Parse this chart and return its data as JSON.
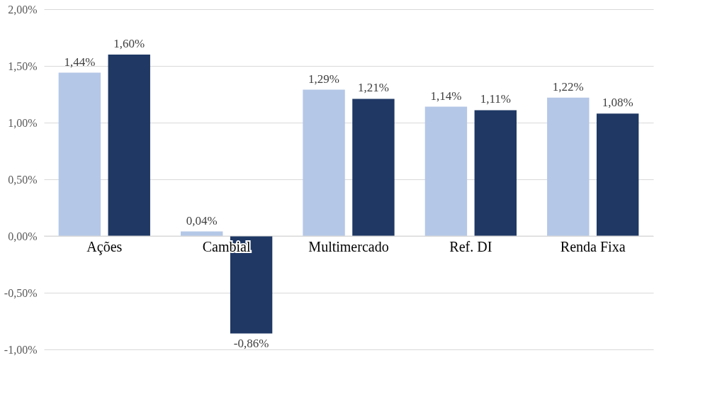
{
  "chart_data": {
    "type": "bar",
    "categories": [
      "Ações",
      "Cambial",
      "Multimercado",
      "Ref. DI",
      "Renda Fixa"
    ],
    "series": [
      {
        "color": "#b4c7e7",
        "values": [
          1.44,
          0.04,
          1.29,
          1.14,
          1.22
        ],
        "value_labels": [
          "1,44%",
          "0,04%",
          "1,29%",
          "1,14%",
          "1,22%"
        ]
      },
      {
        "color": "#1f3864",
        "values": [
          1.6,
          -0.86,
          1.21,
          1.11,
          1.08
        ],
        "value_labels": [
          "1,60%",
          "-0,86%",
          "1,21%",
          "1,11%",
          "1,08%"
        ]
      }
    ],
    "ylim": [
      -1,
      2
    ],
    "yticks": [
      {
        "value": -1,
        "label": "-1,00%"
      },
      {
        "value": -0.5,
        "label": "-0,50%"
      },
      {
        "value": 0,
        "label": "0,00%"
      },
      {
        "value": 0.5,
        "label": "0,50%"
      },
      {
        "value": 1,
        "label": "1,00%"
      },
      {
        "value": 1.5,
        "label": "1,50%"
      },
      {
        "value": 2,
        "label": "2,00%"
      }
    ],
    "grid": "y"
  }
}
